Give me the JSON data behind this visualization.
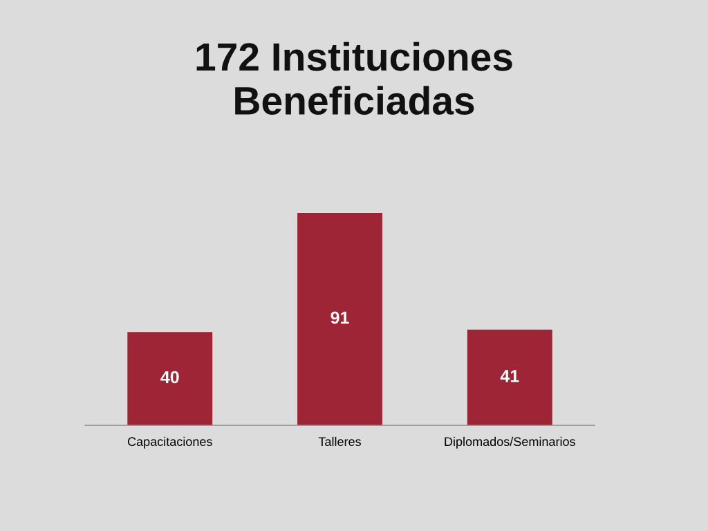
{
  "chart_data": {
    "type": "bar",
    "title": "172 Instituciones\nBeneficiadas",
    "categories": [
      "Capacitaciones",
      "Talleres",
      "Diplomados/Seminarios"
    ],
    "values": [
      40,
      91,
      41
    ],
    "color": "#9e2535",
    "data_labels": true,
    "tick_labels": "x",
    "grid": false,
    "legend": false
  }
}
